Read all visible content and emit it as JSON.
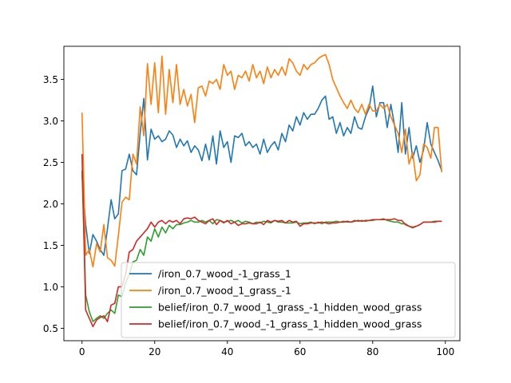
{
  "chart_data": {
    "type": "line",
    "title": "",
    "xlabel": "",
    "ylabel": "",
    "xlim": [
      -5,
      104
    ],
    "ylim": [
      0.35,
      3.9
    ],
    "xticks": [
      0,
      20,
      40,
      60,
      80,
      100
    ],
    "yticks": [
      0.5,
      1.0,
      1.5,
      2.0,
      2.5,
      3.0,
      3.5
    ],
    "grid": false,
    "legend_position": "lower-right",
    "series": [
      {
        "name": "/iron_0.7_wood_-1_grass_1",
        "color": "#1f77b4",
        "values": [
          2.35,
          1.75,
          1.4,
          1.63,
          1.55,
          1.45,
          1.38,
          1.7,
          2.05,
          1.82,
          1.88,
          2.4,
          2.42,
          2.6,
          2.4,
          2.35,
          2.85,
          3.27,
          2.53,
          2.9,
          2.78,
          2.82,
          2.75,
          2.78,
          2.88,
          2.83,
          2.68,
          2.78,
          2.7,
          2.76,
          2.62,
          2.7,
          2.65,
          2.52,
          2.72,
          2.53,
          2.82,
          2.48,
          2.88,
          2.68,
          2.75,
          2.5,
          2.82,
          2.8,
          2.85,
          2.7,
          2.75,
          2.68,
          2.72,
          2.6,
          2.78,
          2.62,
          2.7,
          2.75,
          2.65,
          2.85,
          2.75,
          2.95,
          2.88,
          3.05,
          2.95,
          3.1,
          3.02,
          3.08,
          3.08,
          3.15,
          3.25,
          3.3,
          3.02,
          3.05,
          2.85,
          2.98,
          2.82,
          2.92,
          2.85,
          3.05,
          2.92,
          2.9,
          3.05,
          3.15,
          3.42,
          3.05,
          3.22,
          3.22,
          2.92,
          3.2,
          2.95,
          2.62,
          3.22,
          2.6,
          2.92,
          2.55,
          2.7,
          2.5,
          2.65,
          2.98,
          2.72,
          2.62,
          2.52,
          2.4
        ]
      },
      {
        "name": "/iron_0.7_wood_1_grass_-1",
        "color": "#ff7f0e",
        "values": [
          3.1,
          1.38,
          1.45,
          1.24,
          1.52,
          1.42,
          1.75,
          1.35,
          1.32,
          1.25,
          1.62,
          2.02,
          2.08,
          2.05,
          2.6,
          2.48,
          3.17,
          2.82,
          3.69,
          3.2,
          3.7,
          3.1,
          3.78,
          3.08,
          3.62,
          3.22,
          3.68,
          3.2,
          3.38,
          3.18,
          3.32,
          2.98,
          3.4,
          3.42,
          3.3,
          3.48,
          3.45,
          3.5,
          3.38,
          3.68,
          3.55,
          3.6,
          3.38,
          3.55,
          3.52,
          3.6,
          3.48,
          3.68,
          3.52,
          3.6,
          3.45,
          3.65,
          3.52,
          3.62,
          3.55,
          3.65,
          3.55,
          3.75,
          3.7,
          3.6,
          3.55,
          3.68,
          3.62,
          3.68,
          3.7,
          3.75,
          3.78,
          3.8,
          3.68,
          3.5,
          3.4,
          3.3,
          3.22,
          3.15,
          3.25,
          3.15,
          3.1,
          3.2,
          3.08,
          3.2,
          3.12,
          3.12,
          3.2,
          3.15,
          3.2,
          3.05,
          2.95,
          2.85,
          2.62,
          2.9,
          2.48,
          2.62,
          2.28,
          2.35,
          2.72,
          2.68,
          2.55,
          2.92,
          2.92,
          2.38
        ]
      },
      {
        "name": "belief/iron_0.7_wood_1_grass_-1_hidden_wood_grass",
        "color": "#2ca02c",
        "values": [
          2.4,
          0.9,
          0.7,
          0.58,
          0.62,
          0.65,
          0.62,
          0.68,
          0.72,
          0.68,
          0.9,
          0.88,
          1.05,
          1.15,
          1.3,
          1.32,
          1.45,
          1.38,
          1.6,
          1.55,
          1.7,
          1.6,
          1.72,
          1.65,
          1.74,
          1.7,
          1.75,
          1.75,
          1.77,
          1.78,
          1.8,
          1.78,
          1.78,
          1.8,
          1.78,
          1.8,
          1.76,
          1.81,
          1.8,
          1.78,
          1.79,
          1.8,
          1.78,
          1.8,
          1.77,
          1.79,
          1.78,
          1.76,
          1.78,
          1.77,
          1.79,
          1.78,
          1.77,
          1.8,
          1.78,
          1.78,
          1.77,
          1.77,
          1.77,
          1.78,
          1.76,
          1.77,
          1.77,
          1.78,
          1.76,
          1.78,
          1.76,
          1.78,
          1.78,
          1.78,
          1.79,
          1.78,
          1.79,
          1.78,
          1.78,
          1.8,
          1.79,
          1.8,
          1.79,
          1.8,
          1.8,
          1.81,
          1.81,
          1.82,
          1.8,
          1.79,
          1.78,
          1.78,
          1.76,
          1.76,
          1.73,
          1.71,
          1.73,
          1.75,
          1.78,
          1.78,
          1.78,
          1.79,
          1.79,
          1.79
        ]
      },
      {
        "name": "belief/iron_0.7_wood_-1_grass_1_hidden_wood_grass",
        "color": "#d62728",
        "values": [
          2.6,
          0.72,
          0.62,
          0.52,
          0.6,
          0.63,
          0.65,
          0.58,
          0.78,
          0.8,
          1.0,
          1.0,
          1.15,
          1.42,
          1.45,
          1.55,
          1.6,
          1.65,
          1.7,
          1.78,
          1.72,
          1.78,
          1.8,
          1.76,
          1.8,
          1.78,
          1.8,
          1.76,
          1.82,
          1.83,
          1.82,
          1.84,
          1.8,
          1.78,
          1.76,
          1.8,
          1.82,
          1.75,
          1.8,
          1.77,
          1.8,
          1.76,
          1.78,
          1.74,
          1.76,
          1.76,
          1.77,
          1.76,
          1.76,
          1.78,
          1.75,
          1.8,
          1.78,
          1.8,
          1.79,
          1.8,
          1.77,
          1.8,
          1.78,
          1.79,
          1.73,
          1.76,
          1.76,
          1.77,
          1.77,
          1.77,
          1.78,
          1.77,
          1.76,
          1.77,
          1.77,
          1.78,
          1.78,
          1.79,
          1.78,
          1.79,
          1.8,
          1.79,
          1.8,
          1.8,
          1.81,
          1.81,
          1.81,
          1.81,
          1.81,
          1.81,
          1.82,
          1.8,
          1.8,
          1.75,
          1.73,
          1.72,
          1.73,
          1.75,
          1.78,
          1.78,
          1.78,
          1.78,
          1.79,
          1.79
        ]
      }
    ]
  }
}
